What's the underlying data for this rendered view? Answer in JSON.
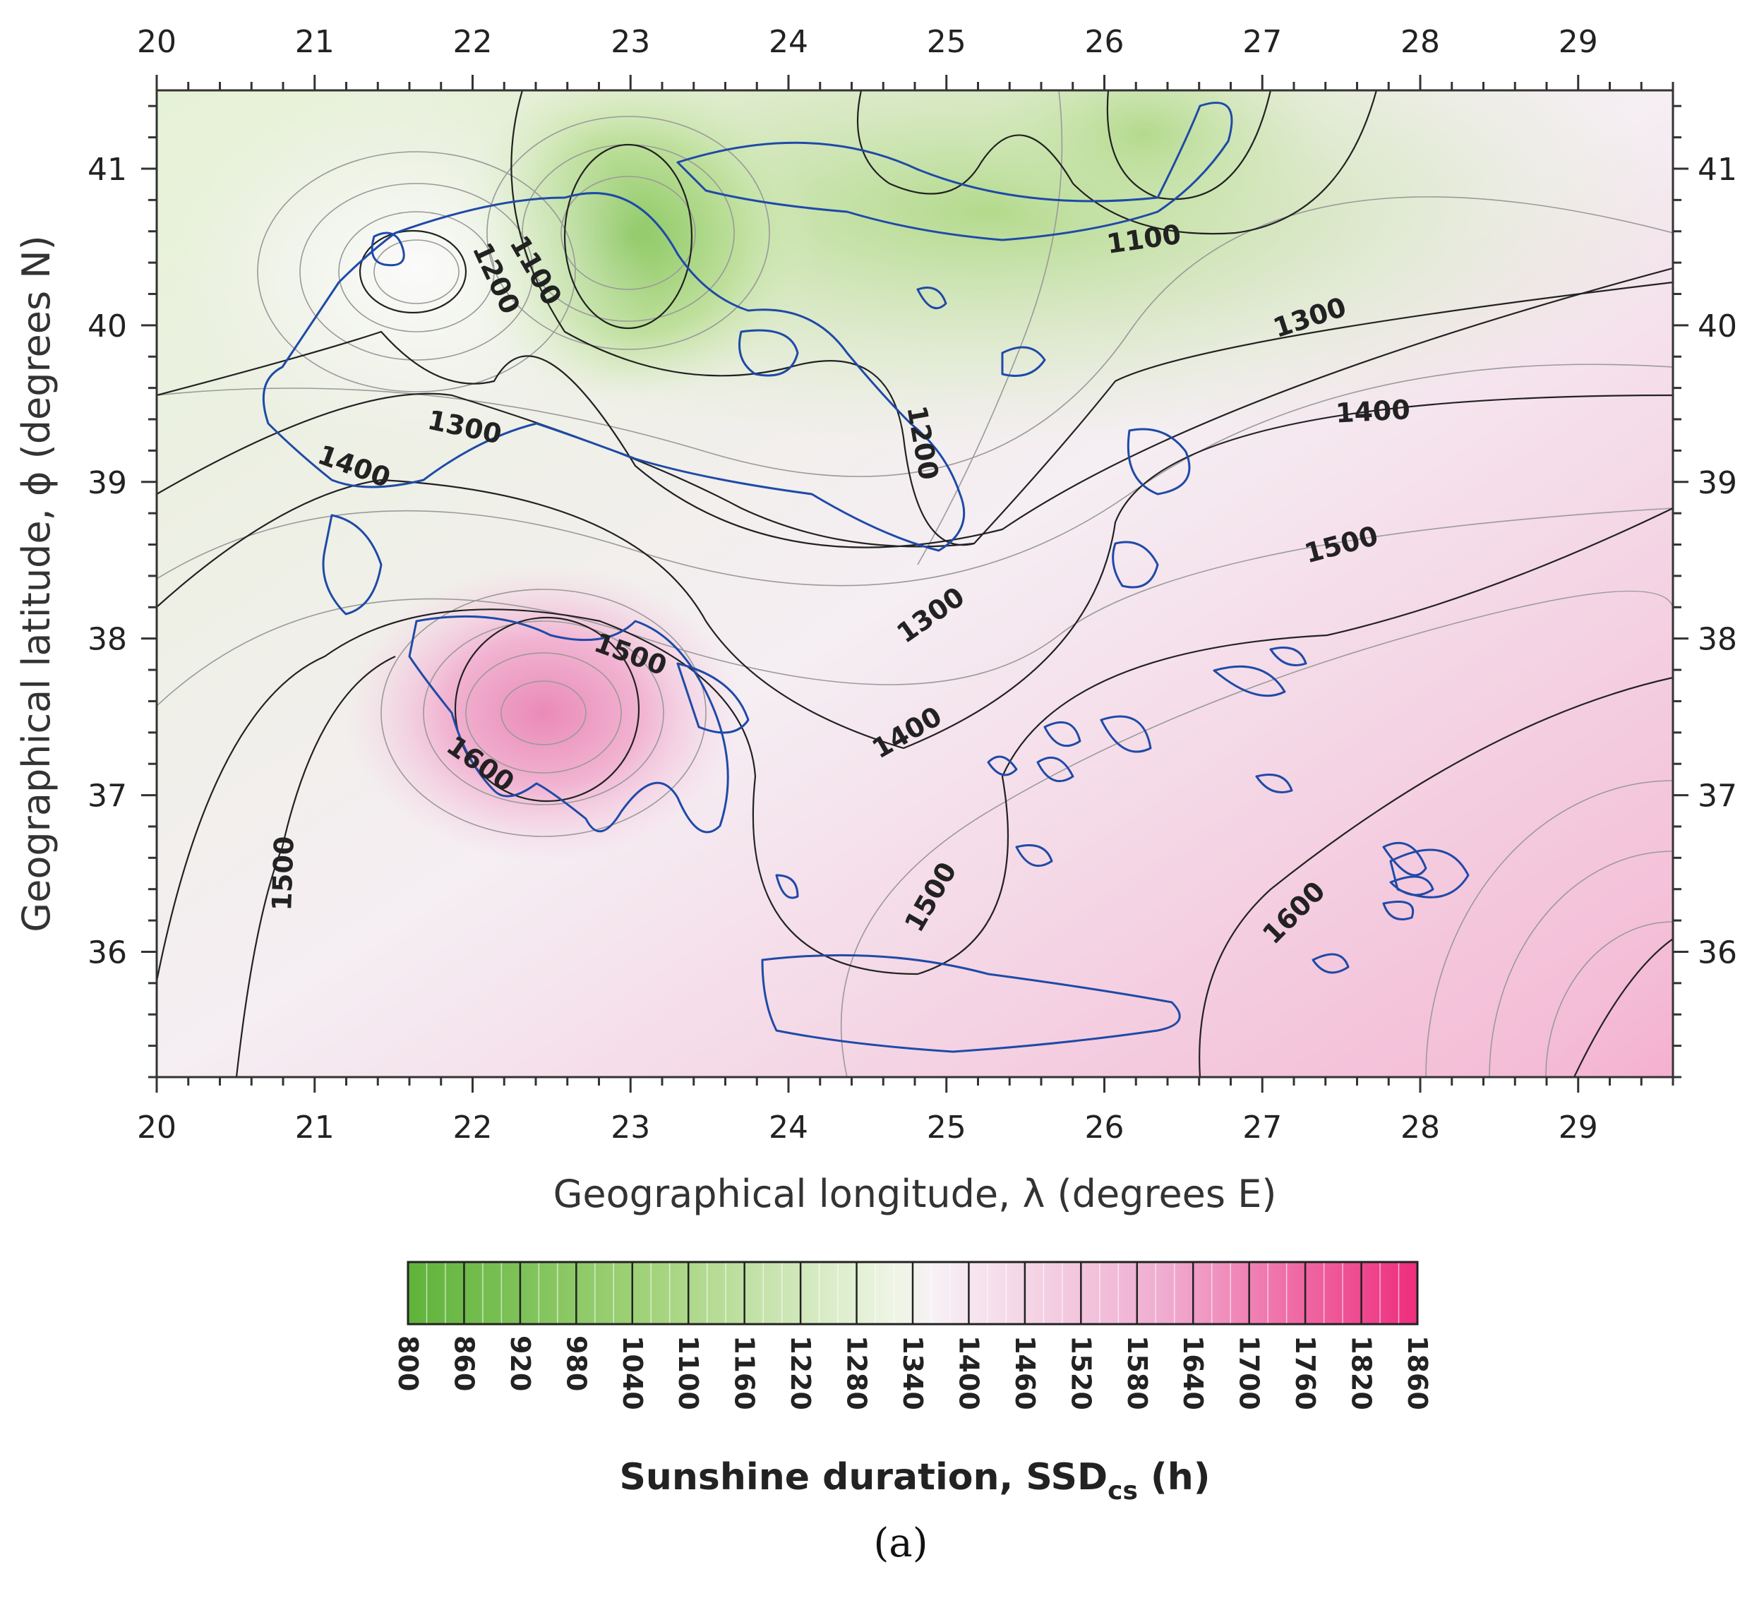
{
  "map": {
    "x_ticks": [
      "20",
      "21",
      "22",
      "23",
      "24",
      "25",
      "26",
      "27",
      "28",
      "29"
    ],
    "y_ticks": [
      "41",
      "40",
      "39",
      "38",
      "37",
      "36"
    ],
    "xlabel": "Geographical longitude, λ (degrees E)",
    "ylabel": "Geographical latitude, ϕ (degrees N)",
    "lon_range": [
      20,
      29.6
    ],
    "lat_range": [
      35.2,
      41.5
    ],
    "contour_labels": [
      {
        "text": "1100",
        "lon": 26.25,
        "lat": 40.55,
        "rot": -8
      },
      {
        "text": "1100",
        "lon": 22.4,
        "lat": 40.35,
        "rot": 60
      },
      {
        "text": "1200",
        "lon": 22.15,
        "lat": 40.3,
        "rot": 65
      },
      {
        "text": "1200",
        "lon": 24.85,
        "lat": 39.25,
        "rot": 80
      },
      {
        "text": "1300",
        "lon": 27.3,
        "lat": 40.05,
        "rot": -18
      },
      {
        "text": "1300",
        "lon": 21.95,
        "lat": 39.35,
        "rot": 12
      },
      {
        "text": "1300",
        "lon": 24.9,
        "lat": 38.15,
        "rot": -35
      },
      {
        "text": "1400",
        "lon": 27.7,
        "lat": 39.45,
        "rot": -3
      },
      {
        "text": "1400",
        "lon": 21.25,
        "lat": 39.1,
        "rot": 20
      },
      {
        "text": "1400",
        "lon": 24.75,
        "lat": 37.4,
        "rot": -30
      },
      {
        "text": "1500",
        "lon": 27.5,
        "lat": 38.6,
        "rot": -15
      },
      {
        "text": "1500",
        "lon": 23.0,
        "lat": 37.9,
        "rot": 20
      },
      {
        "text": "1500",
        "lon": 24.9,
        "lat": 36.35,
        "rot": -60
      },
      {
        "text": "1500",
        "lon": 20.8,
        "lat": 36.5,
        "rot": -88
      },
      {
        "text": "1600",
        "lon": 22.05,
        "lat": 37.2,
        "rot": 35
      },
      {
        "text": "1600",
        "lon": 27.2,
        "lat": 36.25,
        "rot": -45
      }
    ]
  },
  "colorbar": {
    "ticks": [
      "800",
      "860",
      "920",
      "980",
      "1040",
      "1100",
      "1160",
      "1220",
      "1280",
      "1340",
      "1400",
      "1460",
      "1520",
      "1580",
      "1640",
      "1700",
      "1760",
      "1820",
      "1860"
    ],
    "title": "Sunshine duration, SSD",
    "title_sub": "cs",
    "title_suffix": " (h)",
    "low_color": "#5fb33a",
    "mid_color": "#f6f6f6",
    "high_color": "#ee2d7d"
  },
  "panel_label": "(a)",
  "colors": {
    "coast": "#1f4aa8",
    "contour_major": "#222222",
    "contour_minor": "#9a9a9a"
  }
}
